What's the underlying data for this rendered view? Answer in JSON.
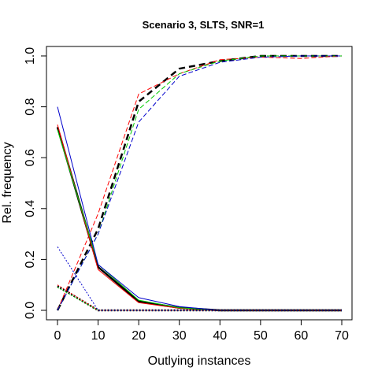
{
  "chart_data": {
    "type": "line",
    "title": "Scenario 3, SLTS, SNR=1",
    "xlabel": "Outlying instances",
    "ylabel": "Rel. frequency",
    "xlim": [
      0,
      70
    ],
    "ylim": [
      0,
      1.0
    ],
    "x_ticks": [
      0,
      10,
      20,
      30,
      40,
      50,
      60,
      70
    ],
    "y_ticks": [
      0.0,
      0.2,
      0.4,
      0.6,
      0.8,
      1.0
    ],
    "x_tick_labels": [
      "0",
      "10",
      "20",
      "30",
      "40",
      "50",
      "60",
      "70"
    ],
    "y_tick_labels": [
      "0.0",
      "0.2",
      "0.4",
      "0.6",
      "0.8",
      "1.0"
    ],
    "grid": false,
    "x": [
      0,
      10,
      20,
      30,
      40,
      50,
      60,
      70
    ],
    "series": [
      {
        "color": "#000000",
        "dash": "8,5",
        "width": 2.5,
        "values": [
          0.0,
          0.32,
          0.82,
          0.95,
          0.98,
          1.0,
          1.0,
          1.0
        ]
      },
      {
        "color": "#ff0000",
        "dash": "6,3",
        "width": 1,
        "values": [
          0.0,
          0.38,
          0.85,
          0.93,
          0.985,
          0.995,
          0.99,
          1.0
        ]
      },
      {
        "color": "#00cc00",
        "dash": "6,3",
        "width": 1,
        "values": [
          0.0,
          0.3,
          0.79,
          0.93,
          0.98,
          1.0,
          1.0,
          1.0
        ]
      },
      {
        "color": "#0000cc",
        "dash": "6,3",
        "width": 1,
        "values": [
          0.0,
          0.3,
          0.74,
          0.92,
          0.975,
          0.995,
          1.0,
          1.0
        ]
      },
      {
        "color": "#000000",
        "dash": "",
        "width": 2.5,
        "values": [
          0.72,
          0.17,
          0.035,
          0.01,
          0.0,
          0.0,
          0.0,
          0.0
        ]
      },
      {
        "color": "#ff0000",
        "dash": "",
        "width": 1,
        "values": [
          0.73,
          0.16,
          0.03,
          0.008,
          0.0,
          0.0,
          0.0,
          0.0
        ]
      },
      {
        "color": "#00cc00",
        "dash": "",
        "width": 1,
        "values": [
          0.71,
          0.18,
          0.04,
          0.01,
          0.0,
          0.0,
          0.0,
          0.0
        ]
      },
      {
        "color": "#0000cc",
        "dash": "",
        "width": 1,
        "values": [
          0.8,
          0.18,
          0.05,
          0.015,
          0.0,
          0.0,
          0.0,
          0.0
        ]
      },
      {
        "color": "#000000",
        "dash": "2,2",
        "width": 2.5,
        "values": [
          0.095,
          0.0,
          0.0,
          0.0,
          0.0,
          0.0,
          0.0,
          0.0
        ]
      },
      {
        "color": "#ff0000",
        "dash": "2,2",
        "width": 1,
        "values": [
          0.1,
          0.0,
          0.0,
          0.0,
          0.0,
          0.0,
          0.0,
          0.0
        ]
      },
      {
        "color": "#00cc00",
        "dash": "2,2",
        "width": 1,
        "values": [
          0.09,
          0.0,
          0.0,
          0.0,
          0.0,
          0.0,
          0.0,
          0.0
        ]
      },
      {
        "color": "#0000cc",
        "dash": "2,2",
        "width": 1,
        "values": [
          0.25,
          0.0,
          0.0,
          0.0,
          0.0,
          0.0,
          0.0,
          0.0
        ]
      }
    ]
  }
}
